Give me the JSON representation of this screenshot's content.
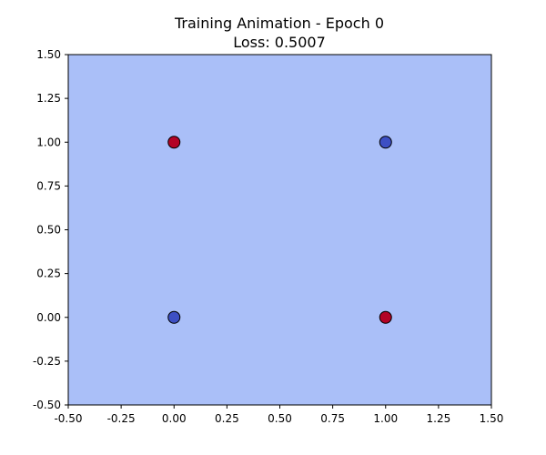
{
  "chart_data": {
    "type": "scatter",
    "title": "Training Animation - Epoch 0",
    "subtitle": "Loss: 0.5007",
    "xlabel": "",
    "ylabel": "",
    "xlim": [
      -0.5,
      1.5
    ],
    "ylim": [
      -0.5,
      1.5
    ],
    "x_ticks": [
      -0.5,
      -0.25,
      0.0,
      0.25,
      0.5,
      0.75,
      1.0,
      1.25,
      1.5
    ],
    "y_ticks": [
      -0.5,
      -0.25,
      0.0,
      0.25,
      0.5,
      0.75,
      1.0,
      1.25,
      1.5
    ],
    "grid": false,
    "background_region_color": "#aabff8",
    "points": [
      {
        "x": 0,
        "y": 0,
        "label": 0,
        "color": "#3d4fc3"
      },
      {
        "x": 0,
        "y": 1,
        "label": 1,
        "color": "#b30326"
      },
      {
        "x": 1,
        "y": 0,
        "label": 1,
        "color": "#b30326"
      },
      {
        "x": 1,
        "y": 1,
        "label": 0,
        "color": "#3d4fc3"
      }
    ]
  }
}
